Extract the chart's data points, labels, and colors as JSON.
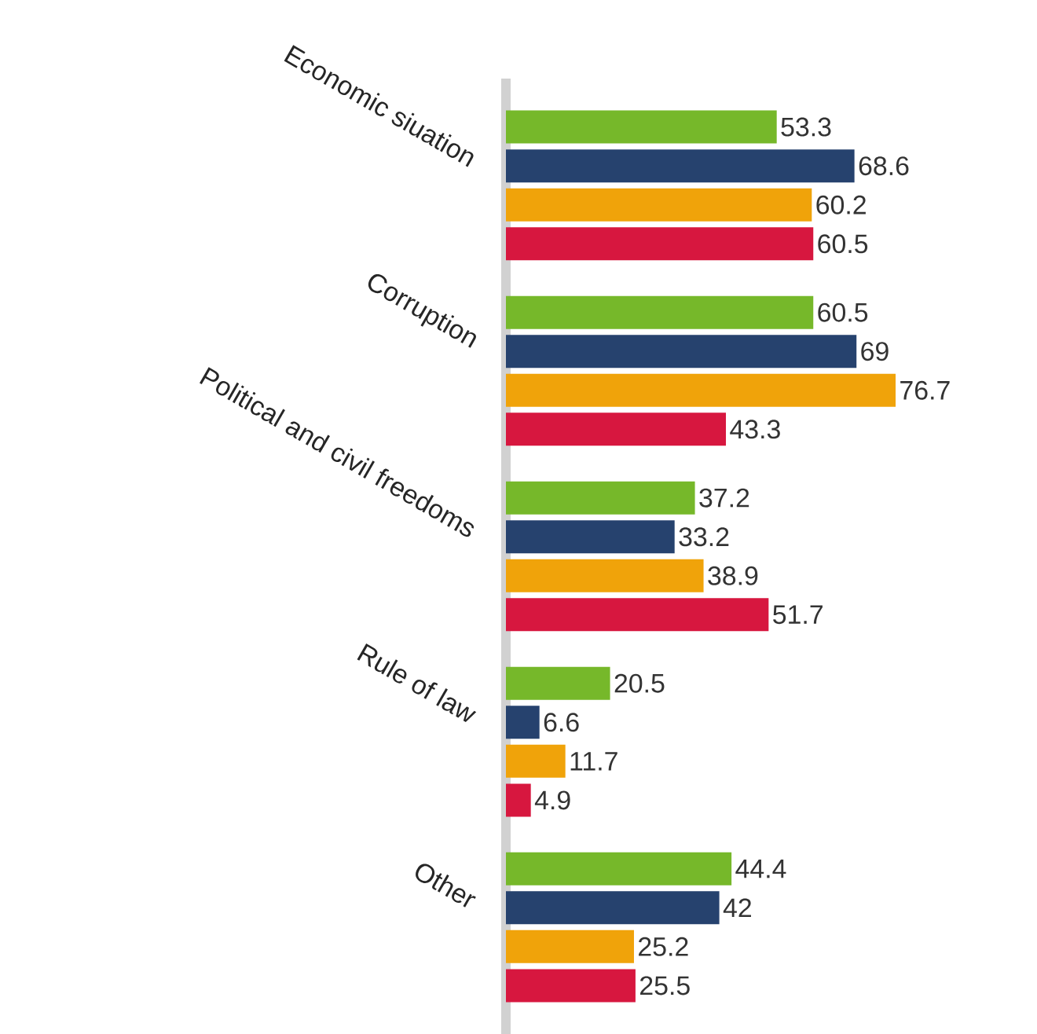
{
  "chart_data": {
    "type": "bar",
    "orientation": "horizontal",
    "categories": [
      "Economic siuation",
      "Corruption",
      "Political and civil freedoms",
      "Rule of law",
      "Other"
    ],
    "series": [
      {
        "color": "#76b82a",
        "values": [
          53.3,
          60.5,
          37.2,
          20.5,
          44.4
        ]
      },
      {
        "color": "#26426e",
        "values": [
          68.6,
          69,
          33.2,
          6.6,
          42
        ]
      },
      {
        "color": "#f0a30a",
        "values": [
          60.2,
          76.7,
          38.9,
          11.7,
          25.2
        ]
      },
      {
        "color": "#d7173f",
        "values": [
          60.5,
          43.3,
          51.7,
          4.9,
          25.5
        ]
      }
    ],
    "data_labels": true
  }
}
